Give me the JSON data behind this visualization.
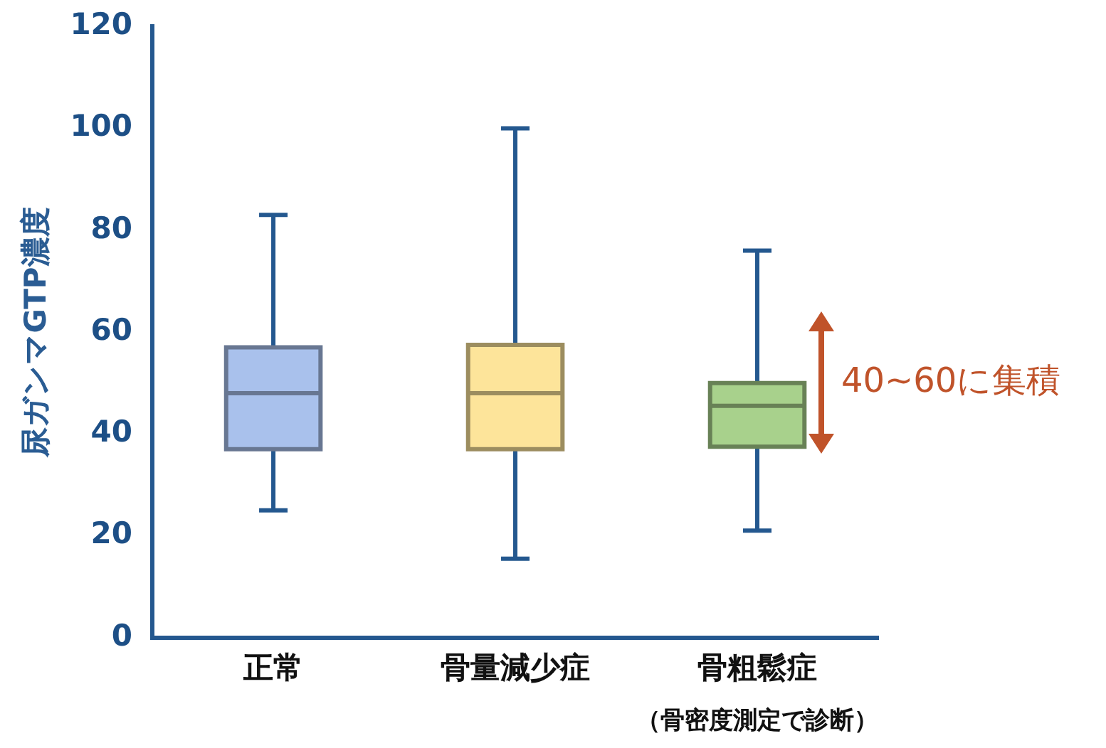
{
  "chart_data": {
    "type": "box",
    "ylabel": "尿ガンマGTP濃度",
    "xlabel": "（骨密度測定で診断）",
    "categories": [
      "正常",
      "骨量減少症",
      "骨粗鬆症"
    ],
    "boxes": [
      {
        "low": 25,
        "q1": 37,
        "median": 48,
        "q3": 57,
        "high": 83
      },
      {
        "low": 15.5,
        "q1": 37,
        "median": 48,
        "q3": 57.5,
        "high": 100
      },
      {
        "low": 21,
        "q1": 37.5,
        "median": 45.5,
        "q3": 50,
        "high": 76
      }
    ],
    "colors": [
      "#a9c1ec",
      "#fde49a",
      "#a8d18c"
    ],
    "ylim": [
      0,
      120
    ],
    "yticks": [
      0,
      20,
      40,
      60,
      80,
      100,
      120
    ],
    "grid": false,
    "legend": false,
    "annotations": [
      "40~60に集積"
    ]
  }
}
